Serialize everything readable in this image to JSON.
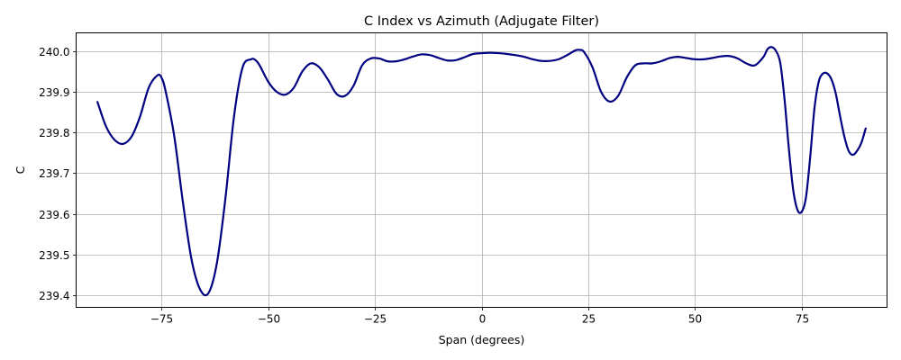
{
  "chart_data": {
    "type": "line",
    "title": "C Index vs Azimuth (Adjugate Filter)",
    "xlabel": "Span (degrees)",
    "ylabel": "C",
    "xlim": [
      -95,
      95
    ],
    "ylim": [
      239.37,
      240.045
    ],
    "xticks": [
      -75,
      -50,
      -25,
      0,
      25,
      50,
      75
    ],
    "xtick_labels": [
      "−75",
      "−50",
      "−25",
      "0",
      "25",
      "50",
      "75"
    ],
    "yticks": [
      239.4,
      239.5,
      239.6,
      239.7,
      239.8,
      239.9,
      240.0
    ],
    "ytick_labels": [
      "239.4",
      "239.5",
      "239.6",
      "239.7",
      "239.8",
      "239.9",
      "240.0"
    ],
    "grid": true,
    "series": [
      {
        "color": "#000080",
        "x": [
          -90,
          -88,
          -86,
          -84,
          -82,
          -80,
          -78,
          -76,
          -75,
          -74,
          -72,
          -70,
          -68,
          -66,
          -64,
          -62,
          -60,
          -58,
          -56,
          -54,
          -53,
          -52,
          -50,
          -48,
          -46,
          -44,
          -42,
          -40,
          -38,
          -36,
          -34,
          -32,
          -30,
          -28,
          -26,
          -24,
          -22,
          -20,
          -18,
          -16,
          -14,
          -12,
          -10,
          -8,
          -6,
          -4,
          -2,
          0,
          2,
          4,
          6,
          8,
          10,
          12,
          14,
          16,
          18,
          20,
          22,
          23,
          24,
          26,
          28,
          30,
          32,
          34,
          36,
          38,
          40,
          42,
          44,
          46,
          48,
          50,
          52,
          54,
          56,
          58,
          60,
          62,
          64,
          66,
          67,
          68,
          69,
          70,
          71,
          72,
          73,
          74,
          75,
          76,
          77,
          78,
          79,
          80,
          81,
          82,
          83,
          84,
          85,
          86,
          87,
          88,
          89,
          90
        ],
        "y": [
          239.875,
          239.815,
          239.782,
          239.772,
          239.79,
          239.84,
          239.91,
          239.94,
          239.935,
          239.9,
          239.79,
          239.63,
          239.49,
          239.415,
          239.405,
          239.48,
          239.64,
          239.84,
          239.96,
          239.98,
          239.978,
          239.965,
          239.925,
          239.9,
          239.893,
          239.91,
          239.95,
          239.97,
          239.96,
          239.93,
          239.895,
          239.89,
          239.915,
          239.965,
          239.982,
          239.982,
          239.975,
          239.975,
          239.98,
          239.987,
          239.992,
          239.99,
          239.983,
          239.977,
          239.978,
          239.985,
          239.993,
          239.995,
          239.996,
          239.995,
          239.993,
          239.99,
          239.986,
          239.98,
          239.976,
          239.976,
          239.98,
          239.99,
          240.002,
          240.003,
          239.998,
          239.96,
          239.9,
          239.876,
          239.89,
          239.935,
          239.965,
          239.97,
          239.97,
          239.975,
          239.983,
          239.986,
          239.983,
          239.98,
          239.98,
          239.983,
          239.987,
          239.988,
          239.982,
          239.97,
          239.965,
          239.985,
          240.005,
          240.01,
          240.0,
          239.97,
          239.88,
          239.76,
          239.66,
          239.61,
          239.605,
          239.64,
          239.74,
          239.86,
          239.925,
          239.945,
          239.945,
          239.93,
          239.895,
          239.84,
          239.79,
          239.755,
          239.745,
          239.755,
          239.775,
          239.81
        ]
      }
    ]
  }
}
